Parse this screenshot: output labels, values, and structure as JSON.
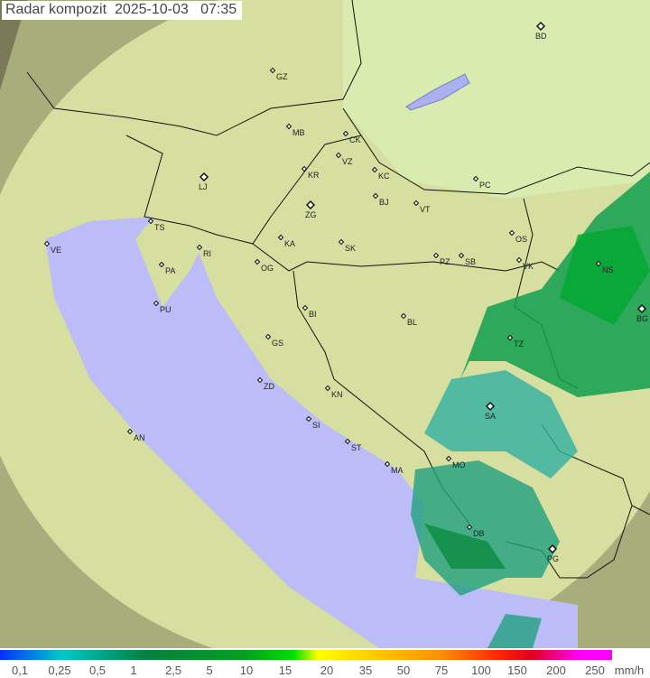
{
  "title": "Radar kompozit  2025-10-03   07:35",
  "legend": {
    "unit": "mm/h",
    "labels": [
      "0,1",
      "0,25",
      "0,5",
      "1",
      "2,5",
      "5",
      "10",
      "15",
      "20",
      "35",
      "50",
      "75",
      "100",
      "150",
      "200",
      "250"
    ]
  },
  "colors": {
    "sea": "#bcbcf8",
    "land": "#d8e8a8",
    "outside": "#8a8a60",
    "coverage": "#e8eec0",
    "rain_light": "#20a0a0",
    "rain_mid": "#109050",
    "rain_heavy": "#00a030"
  },
  "cities": [
    "GZ",
    "BD",
    "MB",
    "CK",
    "VZ",
    "KR",
    "KC",
    "PC",
    "LJ",
    "ZG",
    "BJ",
    "VT",
    "TS",
    "VE",
    "RI",
    "KA",
    "SK",
    "OS",
    "PZ",
    "SB",
    "VK",
    "NS",
    "PA",
    "OG",
    "PU",
    "BI",
    "BL",
    "BG",
    "TZ",
    "GS",
    "ZD",
    "KN",
    "SA",
    "SI",
    "AN",
    "ST",
    "MA",
    "MO",
    "DB",
    "PG"
  ]
}
